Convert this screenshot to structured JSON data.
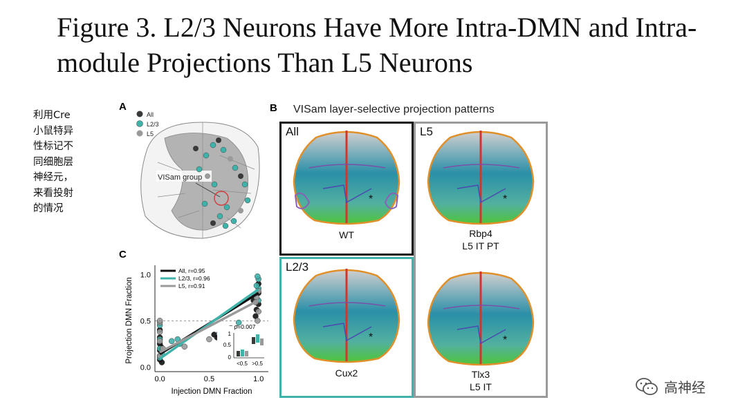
{
  "slide": {
    "title": "Figure 3. L2/3 Neurons Have More Intra-DMN and Intra-module Projections Than L5 Neurons",
    "side_note": "利用Cre小鼠特异性标记不同细胞层神经元，来看投射的情况"
  },
  "panelA": {
    "label": "A",
    "legend": [
      {
        "name": "All",
        "color": "#3a3a3a"
      },
      {
        "name": "L2/3",
        "color": "#3fb3aa"
      },
      {
        "name": "L5",
        "color": "#9a9a9a"
      }
    ],
    "annotation": "VISam group"
  },
  "panelB": {
    "label": "B",
    "title": "VISam layer-selective projection patterns",
    "boxes": [
      {
        "label": "All",
        "caption": "WT",
        "caption2": "",
        "border": "#111111"
      },
      {
        "label": "L5",
        "caption": "Rbp4",
        "caption2": "L5 IT PT",
        "border": "#9a9a9a"
      },
      {
        "label": "L2/3",
        "caption": "Cux2",
        "caption2": "",
        "border": "#3fb3aa"
      },
      {
        "label": "",
        "caption": "Tlx3",
        "caption2": "L5 IT",
        "border": "#9a9a9a"
      }
    ]
  },
  "panelC": {
    "label": "C",
    "xlabel": "Injection DMN Fraction",
    "ylabel": "Projection DMN Fraction",
    "legend": [
      "All, r=0.95",
      "L2/3, r=0.96",
      "L5, r=0.91"
    ],
    "inset": {
      "p_label": "p=0.007",
      "yticks": [
        "1",
        "0.5",
        "0"
      ],
      "xticks": [
        "<0.5",
        ">0.5"
      ]
    }
  },
  "chart_data": {
    "type": "scatter",
    "title": "",
    "xlabel": "Injection DMN Fraction",
    "ylabel": "Projection DMN Fraction",
    "xlim": [
      -0.05,
      1.1
    ],
    "ylim": [
      -0.05,
      1.1
    ],
    "xticks": [
      "0.0",
      "0.5",
      "1.0"
    ],
    "yticks": [
      "0.0",
      "0.5",
      "1.0"
    ],
    "reference_line_y": 0.5,
    "series": [
      {
        "name": "All, r=0.95",
        "color": "#111111",
        "fit": [
          [
            0,
            0.14
          ],
          [
            1,
            0.8
          ]
        ],
        "points": [
          [
            0.0,
            0.08
          ],
          [
            0.0,
            0.12
          ],
          [
            0.0,
            0.18
          ],
          [
            0.0,
            0.25
          ],
          [
            0.0,
            0.32
          ],
          [
            0.0,
            0.4
          ],
          [
            0.02,
            0.05
          ],
          [
            0.01,
            0.22
          ],
          [
            0.55,
            0.35
          ],
          [
            0.58,
            0.32
          ],
          [
            0.95,
            0.72
          ],
          [
            1.0,
            0.8
          ],
          [
            0.98,
            0.62
          ],
          [
            1.0,
            0.9
          ],
          [
            0.97,
            0.55
          ],
          [
            1.0,
            0.68
          ]
        ]
      },
      {
        "name": "L2/3, r=0.96",
        "color": "#3fb3aa",
        "fit": [
          [
            0,
            0.09
          ],
          [
            1,
            0.84
          ]
        ],
        "points": [
          [
            0.0,
            0.1
          ],
          [
            0.0,
            0.2
          ],
          [
            0.0,
            0.3
          ],
          [
            0.0,
            0.45
          ],
          [
            0.02,
            0.15
          ],
          [
            0.12,
            0.28
          ],
          [
            0.18,
            0.3
          ],
          [
            0.2,
            0.25
          ],
          [
            0.6,
            0.36
          ],
          [
            0.78,
            0.42
          ],
          [
            0.8,
            0.48
          ],
          [
            1.0,
            0.95
          ],
          [
            1.0,
            0.85
          ],
          [
            0.98,
            0.88
          ],
          [
            0.96,
            0.78
          ],
          [
            1.0,
            0.72
          ],
          [
            0.99,
            0.98
          ]
        ]
      },
      {
        "name": "L5, r=0.91",
        "color": "#9a9a9a",
        "fit": [
          [
            0,
            0.16
          ],
          [
            1,
            0.72
          ]
        ],
        "points": [
          [
            0.0,
            0.12
          ],
          [
            0.0,
            0.28
          ],
          [
            0.0,
            0.38
          ],
          [
            0.0,
            0.48
          ],
          [
            0.0,
            0.5
          ],
          [
            0.03,
            0.2
          ],
          [
            0.25,
            0.22
          ],
          [
            0.5,
            0.3
          ],
          [
            0.72,
            0.42
          ],
          [
            0.98,
            0.75
          ],
          [
            1.0,
            0.6
          ],
          [
            0.97,
            0.7
          ],
          [
            1.0,
            0.82
          ],
          [
            0.99,
            0.5
          ]
        ]
      }
    ],
    "legend_position": "top-left"
  }
}
